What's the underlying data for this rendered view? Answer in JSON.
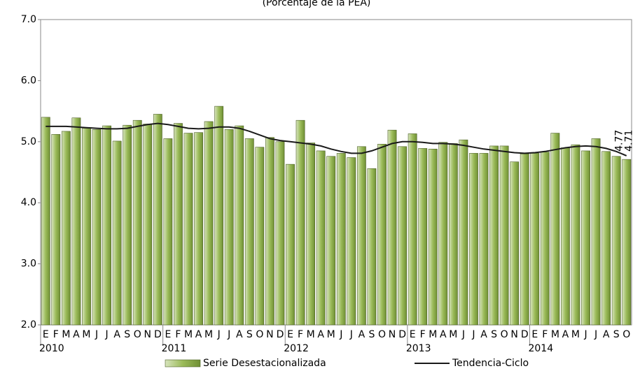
{
  "chart_data": {
    "type": "bar-line",
    "subtitle": "(Porcentaje de la PEA)",
    "categories": [
      "E",
      "F",
      "M",
      "A",
      "M",
      "J",
      "J",
      "A",
      "S",
      "O",
      "N",
      "D",
      "E",
      "F",
      "M",
      "A",
      "M",
      "J",
      "J",
      "A",
      "S",
      "O",
      "N",
      "D",
      "E",
      "F",
      "M",
      "A",
      "M",
      "J",
      "J",
      "A",
      "S",
      "O",
      "N",
      "D",
      "E",
      "F",
      "M",
      "A",
      "M",
      "J",
      "J",
      "A",
      "S",
      "O",
      "N",
      "D",
      "E",
      "F",
      "M",
      "A",
      "M",
      "J",
      "J",
      "A",
      "S",
      "O"
    ],
    "year_labels": [
      "2010",
      "2011",
      "2012",
      "2013",
      "2014"
    ],
    "series": [
      {
        "name": "Serie Desestacionalizada",
        "color": "#9bbb59",
        "values": [
          5.4,
          5.12,
          5.17,
          5.39,
          5.22,
          5.2,
          5.26,
          5.01,
          5.27,
          5.35,
          5.29,
          5.45,
          5.05,
          5.3,
          5.14,
          5.15,
          5.33,
          5.58,
          5.2,
          5.26,
          5.05,
          4.91,
          5.07,
          5.0,
          4.63,
          5.35,
          4.98,
          4.85,
          4.76,
          4.81,
          4.74,
          4.92,
          4.56,
          4.96,
          5.19,
          4.92,
          5.13,
          4.89,
          4.88,
          4.99,
          4.97,
          5.03,
          4.81,
          4.81,
          4.93,
          4.93,
          4.67,
          4.8,
          4.81,
          4.83,
          5.14,
          4.9,
          4.95,
          4.85,
          5.05,
          4.84,
          4.76,
          4.71
        ],
        "value_labels": [
          null,
          null,
          null,
          null,
          null,
          null,
          null,
          null,
          null,
          null,
          null,
          null,
          null,
          null,
          null,
          null,
          null,
          null,
          null,
          null,
          null,
          null,
          null,
          null,
          null,
          null,
          null,
          null,
          null,
          null,
          null,
          null,
          null,
          null,
          null,
          null,
          null,
          null,
          null,
          null,
          null,
          null,
          null,
          null,
          null,
          null,
          null,
          null,
          null,
          null,
          null,
          null,
          null,
          null,
          null,
          null,
          null,
          "4.71"
        ]
      },
      {
        "name": "Tendencia-Ciclo",
        "color": "#1a1a1a",
        "type": "line",
        "values": [
          5.25,
          5.25,
          5.25,
          5.24,
          5.23,
          5.22,
          5.21,
          5.21,
          5.22,
          5.25,
          5.28,
          5.3,
          5.28,
          5.25,
          5.22,
          5.21,
          5.22,
          5.24,
          5.24,
          5.22,
          5.17,
          5.11,
          5.05,
          5.02,
          5.0,
          4.98,
          4.96,
          4.93,
          4.88,
          4.84,
          4.81,
          4.81,
          4.85,
          4.91,
          4.97,
          5.0,
          5.0,
          4.99,
          4.97,
          4.97,
          4.96,
          4.94,
          4.91,
          4.88,
          4.86,
          4.84,
          4.82,
          4.81,
          4.82,
          4.84,
          4.87,
          4.9,
          4.92,
          4.93,
          4.92,
          4.89,
          4.84,
          4.77
        ],
        "value_labels": [
          null,
          null,
          null,
          null,
          null,
          null,
          null,
          null,
          null,
          null,
          null,
          null,
          null,
          null,
          null,
          null,
          null,
          null,
          null,
          null,
          null,
          null,
          null,
          null,
          null,
          null,
          null,
          null,
          null,
          null,
          null,
          null,
          null,
          null,
          null,
          null,
          null,
          null,
          null,
          null,
          null,
          null,
          null,
          null,
          null,
          null,
          null,
          null,
          null,
          null,
          null,
          null,
          null,
          null,
          null,
          null,
          null,
          "4.77"
        ]
      }
    ],
    "ylim": [
      2,
      7
    ],
    "yticks": [
      {
        "value": 2,
        "label": "2.0"
      },
      {
        "value": 3,
        "label": "3.0"
      },
      {
        "value": 4,
        "label": "4.0"
      },
      {
        "value": 5,
        "label": "5.0"
      },
      {
        "value": 6,
        "label": "6.0"
      },
      {
        "value": 7,
        "label": "7.0"
      }
    ],
    "grid": false
  }
}
